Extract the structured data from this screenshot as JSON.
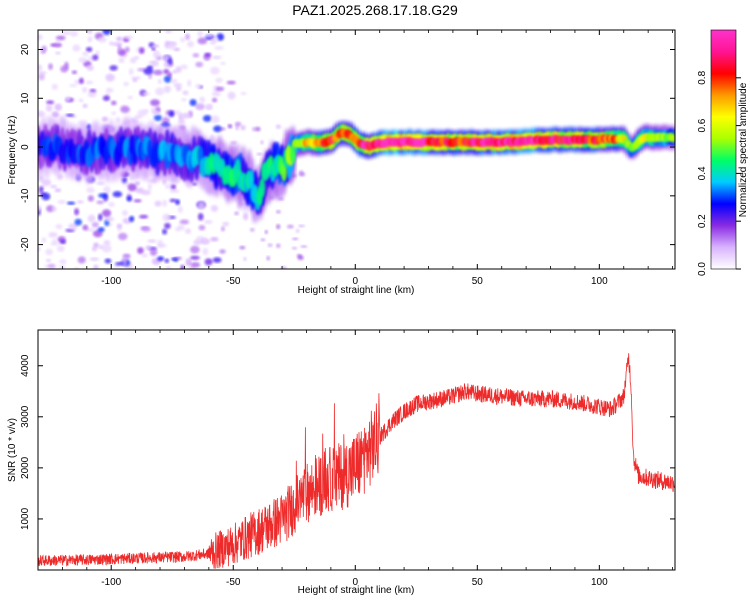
{
  "title": "PAZ1.2025.268.17.18.G29",
  "chart_data": [
    {
      "type": "heatmap",
      "xlabel": "Height of straight line (km)",
      "ylabel": "Frequency (Hz)",
      "xlim": [
        -130,
        131
      ],
      "ylim": [
        -25,
        24
      ],
      "xticks": [
        -100,
        -50,
        0,
        50,
        100
      ],
      "yticks": [
        -20,
        -10,
        0,
        10,
        20
      ],
      "colorbar": {
        "label": "Normalized spectral amplitude",
        "range": [
          0,
          1
        ],
        "ticks": [
          "0.0",
          "0.2",
          "0.4",
          "0.6",
          "0.8"
        ],
        "tick_values": [
          0,
          0.2,
          0.4,
          0.6,
          0.8
        ],
        "colors": [
          "#ffffff",
          "#d9b3ff",
          "#8a2be2",
          "#0000ff",
          "#00ccff",
          "#00ff66",
          "#aaff00",
          "#ffff00",
          "#ff9900",
          "#ff0000",
          "#ff1493",
          "#ff33cc"
        ]
      },
      "trace_frequency": {
        "heights_km": [
          -130,
          -110,
          -90,
          -75,
          -65,
          -55,
          -48,
          -43,
          -40,
          -37,
          -33,
          -29,
          -25,
          -20,
          -15,
          -10,
          -6,
          -2,
          2,
          6,
          10,
          20,
          40,
          60,
          80,
          100,
          110,
          113,
          118,
          131
        ],
        "freq_hz": [
          0.3,
          -1.0,
          -0.5,
          -1.5,
          -2.5,
          -4.5,
          -5.5,
          -7.5,
          -10.5,
          -5.5,
          -3.8,
          -4.2,
          0.5,
          1.0,
          0.8,
          1.2,
          3.0,
          2.5,
          0.6,
          0.2,
          0.8,
          1.0,
          1.0,
          1.0,
          1.5,
          1.5,
          1.8,
          -0.3,
          2.0,
          2.0
        ]
      },
      "trace_amplitude": {
        "heights_km": [
          -130,
          -70,
          -60,
          -50,
          -40,
          -30,
          -22,
          -15,
          -5,
          5,
          15,
          40,
          60,
          80,
          100,
          110,
          113,
          118,
          131
        ],
        "amplitude": [
          0.25,
          0.3,
          0.35,
          0.4,
          0.35,
          0.4,
          0.55,
          0.75,
          0.7,
          0.8,
          0.95,
          0.75,
          0.9,
          0.85,
          0.75,
          0.6,
          0.45,
          0.55,
          0.45
        ]
      }
    },
    {
      "type": "line",
      "xlabel": "Height of straight line (km)",
      "ylabel": "SNR (10 * v/v)",
      "xlim": [
        -130,
        131
      ],
      "ylim": [
        0,
        4700
      ],
      "xticks": [
        -100,
        -50,
        0,
        50,
        100
      ],
      "yticks": [
        1000,
        2000,
        3000,
        4000
      ],
      "series": [
        {
          "name": "SNR",
          "color": "#ee2a2a",
          "x": [
            -130,
            -110,
            -90,
            -70,
            -60,
            -50,
            -40,
            -30,
            -20,
            -12,
            -5,
            0,
            5,
            10,
            15,
            20,
            25,
            30,
            40,
            45,
            50,
            60,
            70,
            80,
            90,
            100,
            105,
            110,
            112,
            113,
            114,
            116,
            120,
            125,
            131
          ],
          "y": [
            180,
            200,
            230,
            260,
            320,
            500,
            750,
            1000,
            1500,
            1750,
            1850,
            2000,
            2300,
            2600,
            2900,
            3100,
            3250,
            3300,
            3400,
            3500,
            3450,
            3400,
            3350,
            3350,
            3300,
            3200,
            3150,
            3400,
            4200,
            3600,
            2200,
            1850,
            1800,
            1750,
            1700
          ]
        }
      ]
    }
  ]
}
